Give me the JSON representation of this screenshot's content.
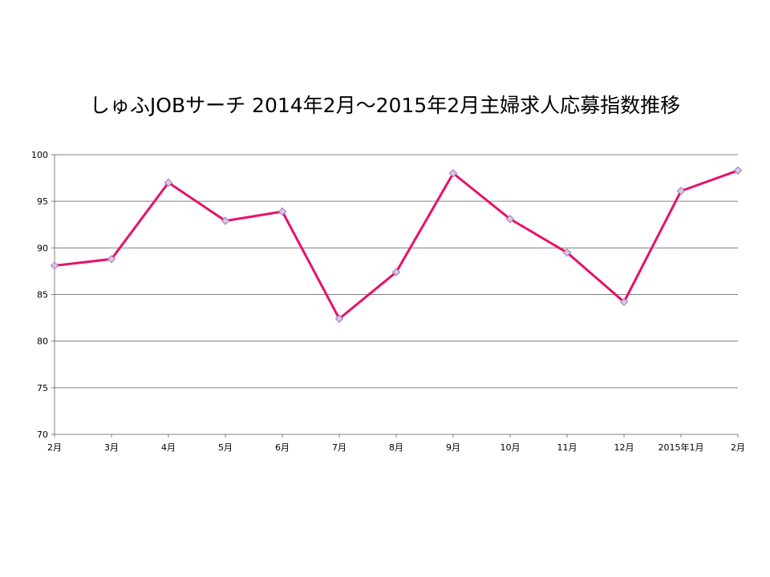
{
  "chart_data": {
    "type": "line",
    "title": "しゅふJOBサーチ 2014年2月～2015年2月主婦求人応募指数推移",
    "xlabel": "",
    "ylabel": "",
    "categories": [
      "2月",
      "3月",
      "4月",
      "5月",
      "6月",
      "7月",
      "8月",
      "9月",
      "10月",
      "11月",
      "12月",
      "2015年1月",
      "2月"
    ],
    "series": [
      {
        "values": [
          88.1,
          88.8,
          97.0,
          92.9,
          93.9,
          82.4,
          87.4,
          98.0,
          93.1,
          89.5,
          84.2,
          96.1,
          98.3
        ]
      }
    ],
    "ylim": [
      70,
      100
    ],
    "yticks": [
      70,
      75,
      80,
      85,
      90,
      95,
      100
    ],
    "grid": true,
    "legend": "none",
    "colors": {
      "line": "#e8116a",
      "marker_fill": "#d9c6e6",
      "marker_stroke": "#a07ab8",
      "grid": "#808080",
      "axis": "#808080"
    }
  }
}
